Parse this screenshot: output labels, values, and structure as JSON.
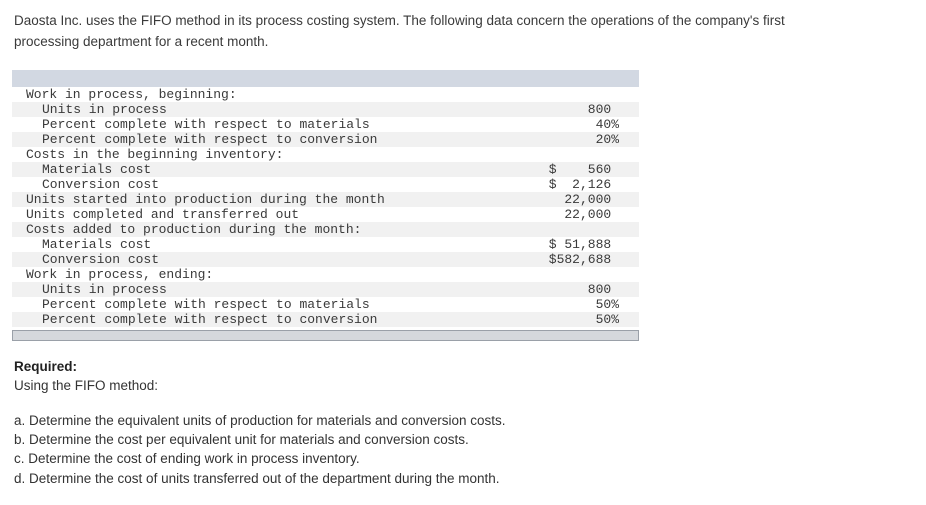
{
  "intro": {
    "lines": [
      "Daosta Inc. uses the FIFO method in its process costing system. The following data concern the operations of the company's first",
      "processing department for a recent month."
    ]
  },
  "table": {
    "rows": [
      {
        "label": "Work in process, beginning:",
        "value": "",
        "indent": 0
      },
      {
        "label": "Units in process",
        "value": "     800 ",
        "indent": 1
      },
      {
        "label": "Percent complete with respect to materials",
        "value": "      40%",
        "indent": 1
      },
      {
        "label": "Percent complete with respect to conversion",
        "value": "      20%",
        "indent": 1
      },
      {
        "label": "Costs in the beginning inventory:",
        "value": "",
        "indent": 0
      },
      {
        "label": "Materials cost",
        "value": "$    560 ",
        "indent": 1
      },
      {
        "label": "Conversion cost",
        "value": "$  2,126 ",
        "indent": 1
      },
      {
        "label": "Units started into production during the month",
        "value": "  22,000 ",
        "indent": 0
      },
      {
        "label": "Units completed and transferred out",
        "value": "  22,000 ",
        "indent": 0
      },
      {
        "label": "Costs added to production during the month:",
        "value": "",
        "indent": 0
      },
      {
        "label": "Materials cost",
        "value": "$ 51,888 ",
        "indent": 1
      },
      {
        "label": "Conversion cost",
        "value": "$582,688 ",
        "indent": 1
      },
      {
        "label": "Work in process, ending:",
        "value": "",
        "indent": 0
      },
      {
        "label": "Units in process",
        "value": "     800 ",
        "indent": 1
      },
      {
        "label": "Percent complete with respect to materials",
        "value": "      50%",
        "indent": 1
      },
      {
        "label": "Percent complete with respect to conversion",
        "value": "      50%",
        "indent": 1
      }
    ]
  },
  "required": {
    "heading": "Required:",
    "subheading": "Using the FIFO method:",
    "items": [
      "a. Determine the equivalent units of production for materials and conversion costs.",
      "b. Determine the cost per equivalent unit for materials and conversion costs.",
      "c. Determine the cost of ending work in process inventory.",
      "d. Determine the cost of units transferred out of the department during the month."
    ]
  },
  "colors": {
    "table_header_bar": "#d2d8e2",
    "row_stripe": "#f1f1f1",
    "scrollbar_fill": "#d5d8dc",
    "scrollbar_border": "#9aa0a8",
    "text": "#3a3a3a"
  }
}
